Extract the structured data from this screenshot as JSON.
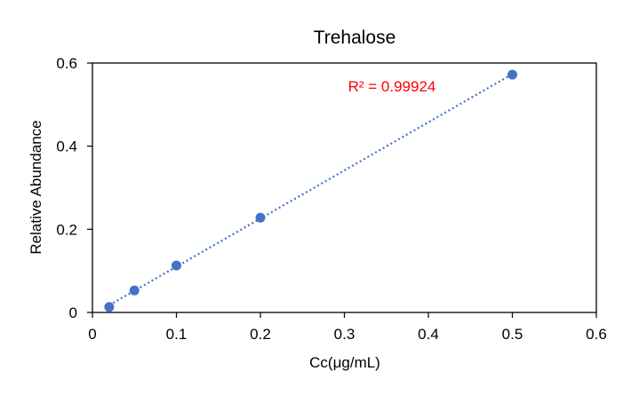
{
  "chart_data": {
    "type": "scatter",
    "title": "Trehalose",
    "xlabel": "Cc(μg/mL)",
    "ylabel": "Relative Abundance",
    "xlim": [
      0,
      0.6
    ],
    "ylim": [
      0,
      0.6
    ],
    "xticks": [
      "0",
      "0.1",
      "0.2",
      "0.3",
      "0.4",
      "0.5",
      "0.6"
    ],
    "yticks": [
      "0",
      "0.2",
      "0.4",
      "0.6"
    ],
    "grid": false,
    "series": [
      {
        "x": [
          0.02,
          0.05,
          0.1,
          0.2,
          0.5
        ],
        "y": [
          0.013,
          0.053,
          0.113,
          0.228,
          0.572
        ],
        "color": "#4472C4",
        "trendline": {
          "type": "linear",
          "style": "dotted",
          "color": "#4472C4"
        }
      }
    ],
    "annotation": {
      "text": "R² = 0.99924",
      "color": "#FF0000"
    }
  }
}
